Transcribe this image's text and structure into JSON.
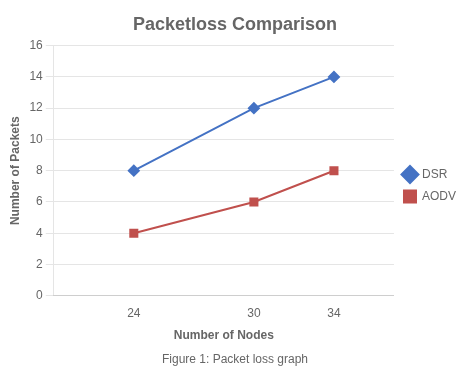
{
  "chart_data": {
    "type": "line",
    "title": "Packetloss Comparison",
    "caption": "Figure 1: Packet loss graph",
    "x_label": "Number of Nodes",
    "y_label": "Number of Packets",
    "x": [
      24,
      30,
      34
    ],
    "series": [
      {
        "name": "DSR",
        "color": "#4472C4",
        "marker": "diamond",
        "values": [
          8,
          12,
          14
        ]
      },
      {
        "name": "AODV",
        "color": "#C0504D",
        "marker": "square",
        "values": [
          4,
          6,
          8
        ]
      }
    ],
    "xlim": [
      20,
      37
    ],
    "xticks": [
      24,
      30,
      34
    ],
    "ylim": [
      0,
      16
    ],
    "yticks": [
      0,
      2,
      4,
      6,
      8,
      10,
      12,
      14,
      16
    ],
    "grid": "y",
    "legend": "right"
  }
}
